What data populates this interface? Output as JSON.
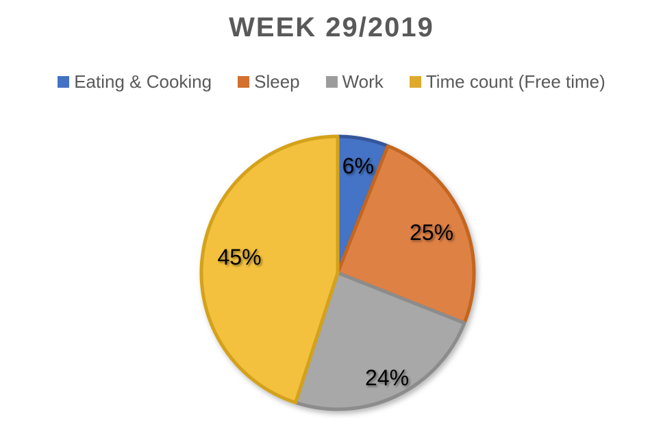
{
  "page": {
    "background": "#FFFFFF"
  },
  "chart_data": {
    "type": "pie",
    "title": "WEEK 29/2019",
    "start_angle_deg": 0,
    "direction": "clockwise",
    "legend_position": "top",
    "data_labels": "percent",
    "title_color": "#595959",
    "legend_text_color": "#595959",
    "label_text_color": "#000000",
    "slices": [
      {
        "name": "Eating & Cooking",
        "value": 6,
        "label": "6%",
        "color": "#4573C6",
        "border_color": "#35569B",
        "legend_color": "#4472C4",
        "label_r": 0.8
      },
      {
        "name": "Sleep",
        "value": 25,
        "label": "25%",
        "color": "#DE8145",
        "border_color": "#C4661F",
        "legend_color": "#D2702E",
        "label_r": 0.75
      },
      {
        "name": "Work",
        "value": 24,
        "label": "24%",
        "color": "#A8A8A8",
        "border_color": "#8C8C8C",
        "legend_color": "#9C9C9C",
        "label_r": 0.85
      },
      {
        "name": "Time count (Free time)",
        "value": 45,
        "label": "45%",
        "color": "#F3C13E",
        "border_color": "#D4A21A",
        "legend_color": "#DFA92C",
        "label_r": 0.73
      }
    ]
  }
}
